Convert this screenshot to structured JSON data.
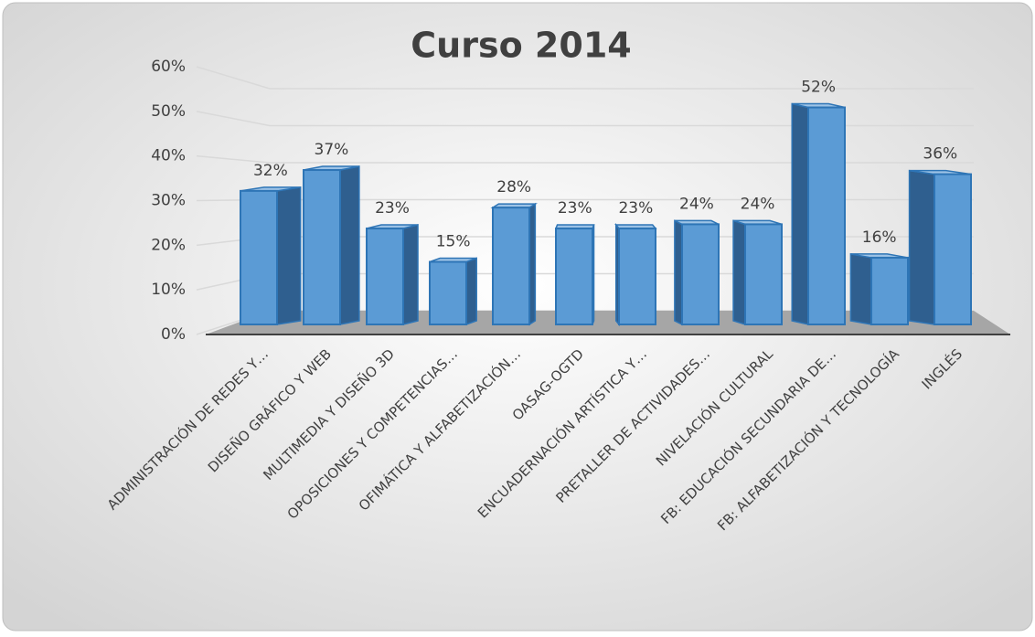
{
  "chart_data": {
    "type": "bar",
    "title": "Curso 2014",
    "categories": [
      "ADMINISTRACIÓN DE REDES Y…",
      "DISEÑO GRÁFICO Y WEB",
      "MULTIMEDIA Y DISEÑO 3D",
      "OPOSICIONES Y COMPETENCIAS…",
      "OFIMÁTICA Y ALFABETIZACIÓN…",
      "OASAG-OGTD",
      "ENCUADERNACIÓN ARTÍSTICA Y…",
      "PRETALLER DE ACTIVIDADES…",
      "NIVELACIÓN CULTURAL",
      "FB: EDUCACIÓN SECUNDARIA DE…",
      "FB: ALFABETIZACIÓN Y TECNOLOGÍA",
      "INGLÉS"
    ],
    "values": [
      32,
      37,
      23,
      15,
      28,
      23,
      23,
      24,
      24,
      52,
      16,
      36
    ],
    "value_labels": [
      "32%",
      "37%",
      "23%",
      "15%",
      "28%",
      "23%",
      "23%",
      "24%",
      "24%",
      "52%",
      "16%",
      "36%"
    ],
    "color": "#5b9bd5",
    "ylim": [
      0,
      60
    ],
    "yticks": [
      {
        "value": 0,
        "label": "0%"
      },
      {
        "value": 10,
        "label": "10%"
      },
      {
        "value": 20,
        "label": "20%"
      },
      {
        "value": 30,
        "label": "30%"
      },
      {
        "value": 40,
        "label": "40%"
      },
      {
        "value": 50,
        "label": "50%"
      },
      {
        "value": 60,
        "label": "60%"
      }
    ],
    "grid": true
  }
}
